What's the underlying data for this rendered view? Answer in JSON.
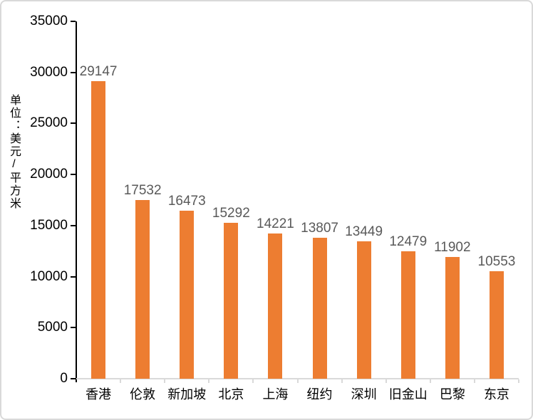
{
  "chart_data": {
    "type": "bar",
    "title": "",
    "ylabel": "单位：美元/平方米",
    "xlabel": "",
    "categories": [
      "香港",
      "伦敦",
      "新加坡",
      "北京",
      "上海",
      "纽约",
      "深圳",
      "旧金山",
      "巴黎",
      "东京"
    ],
    "values": [
      29147,
      17532,
      16473,
      15292,
      14221,
      13807,
      13449,
      12479,
      11902,
      10553
    ],
    "series_name": "",
    "yticks": [
      0,
      5000,
      10000,
      15000,
      20000,
      25000,
      30000,
      35000
    ],
    "ylim": [
      0,
      35000
    ],
    "grid": false,
    "legend": "none",
    "data_labels": "outside-end",
    "colors": {
      "bar": "#ED7D31",
      "data_label": "#595959",
      "axis_line": "#000000",
      "baseline": "#D9D9D9",
      "tick_label": "#000000",
      "border": "#D9D9D9"
    }
  }
}
